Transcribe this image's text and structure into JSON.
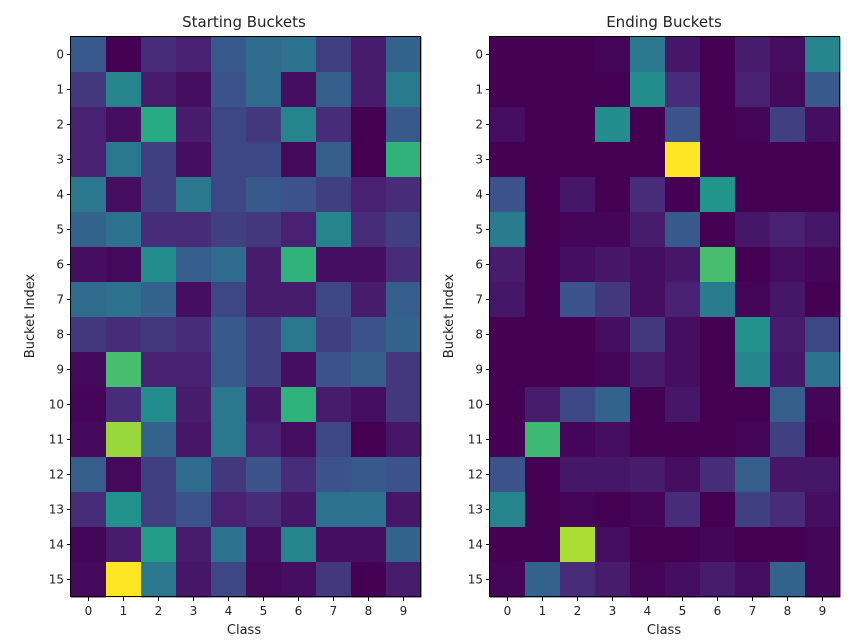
{
  "chart_data": [
    {
      "type": "heatmap",
      "title": "Starting Buckets",
      "xlabel": "Class",
      "ylabel": "Bucket Index",
      "x_ticks": [
        "0",
        "1",
        "2",
        "3",
        "4",
        "5",
        "6",
        "7",
        "8",
        "9"
      ],
      "y_ticks": [
        "0",
        "1",
        "2",
        "3",
        "4",
        "5",
        "6",
        "7",
        "8",
        "9",
        "10",
        "11",
        "12",
        "13",
        "14",
        "15"
      ],
      "colormap": "viridis",
      "value_range": [
        0,
        1
      ],
      "values": [
        [
          0.28,
          0.0,
          0.15,
          0.12,
          0.28,
          0.35,
          0.38,
          0.2,
          0.1,
          0.32
        ],
        [
          0.18,
          0.45,
          0.1,
          0.05,
          0.25,
          0.35,
          0.05,
          0.3,
          0.1,
          0.42
        ],
        [
          0.12,
          0.05,
          0.62,
          0.1,
          0.22,
          0.18,
          0.45,
          0.15,
          0.0,
          0.28
        ],
        [
          0.12,
          0.4,
          0.2,
          0.05,
          0.22,
          0.22,
          0.03,
          0.3,
          0.0,
          0.65
        ],
        [
          0.4,
          0.05,
          0.2,
          0.4,
          0.22,
          0.28,
          0.25,
          0.2,
          0.12,
          0.15
        ],
        [
          0.32,
          0.38,
          0.15,
          0.15,
          0.2,
          0.18,
          0.12,
          0.45,
          0.15,
          0.2
        ],
        [
          0.05,
          0.03,
          0.48,
          0.3,
          0.35,
          0.1,
          0.65,
          0.05,
          0.05,
          0.15
        ],
        [
          0.35,
          0.38,
          0.32,
          0.05,
          0.22,
          0.1,
          0.1,
          0.22,
          0.1,
          0.3
        ],
        [
          0.18,
          0.15,
          0.18,
          0.15,
          0.28,
          0.2,
          0.4,
          0.2,
          0.25,
          0.32
        ],
        [
          0.03,
          0.7,
          0.12,
          0.12,
          0.28,
          0.2,
          0.05,
          0.25,
          0.3,
          0.18
        ],
        [
          0.02,
          0.15,
          0.48,
          0.1,
          0.4,
          0.08,
          0.65,
          0.1,
          0.05,
          0.18
        ],
        [
          0.03,
          0.85,
          0.32,
          0.08,
          0.4,
          0.12,
          0.05,
          0.22,
          0.0,
          0.08
        ],
        [
          0.3,
          0.03,
          0.2,
          0.35,
          0.18,
          0.25,
          0.15,
          0.25,
          0.28,
          0.25
        ],
        [
          0.15,
          0.5,
          0.2,
          0.25,
          0.12,
          0.15,
          0.08,
          0.38,
          0.38,
          0.08
        ],
        [
          0.02,
          0.1,
          0.55,
          0.1,
          0.38,
          0.05,
          0.45,
          0.05,
          0.05,
          0.32
        ],
        [
          0.03,
          1.0,
          0.4,
          0.08,
          0.22,
          0.03,
          0.05,
          0.18,
          0.0,
          0.1
        ]
      ]
    },
    {
      "type": "heatmap",
      "title": "Ending Buckets",
      "xlabel": "Class",
      "ylabel": "Bucket Index",
      "x_ticks": [
        "0",
        "1",
        "2",
        "3",
        "4",
        "5",
        "6",
        "7",
        "8",
        "9"
      ],
      "y_ticks": [
        "0",
        "1",
        "2",
        "3",
        "4",
        "5",
        "6",
        "7",
        "8",
        "9",
        "10",
        "11",
        "12",
        "13",
        "14",
        "15"
      ],
      "colormap": "viridis",
      "value_range": [
        0,
        1
      ],
      "values": [
        [
          0.0,
          0.0,
          0.0,
          0.02,
          0.4,
          0.08,
          0.0,
          0.1,
          0.05,
          0.45
        ],
        [
          0.0,
          0.0,
          0.0,
          0.0,
          0.48,
          0.15,
          0.0,
          0.12,
          0.03,
          0.28
        ],
        [
          0.05,
          0.0,
          0.0,
          0.48,
          0.0,
          0.25,
          0.0,
          0.02,
          0.2,
          0.05
        ],
        [
          0.0,
          0.0,
          0.0,
          0.0,
          0.0,
          1.0,
          0.0,
          0.0,
          0.0,
          0.0
        ],
        [
          0.25,
          0.0,
          0.08,
          0.0,
          0.15,
          0.0,
          0.52,
          0.0,
          0.0,
          0.0
        ],
        [
          0.42,
          0.0,
          0.02,
          0.02,
          0.1,
          0.28,
          0.0,
          0.08,
          0.12,
          0.08
        ],
        [
          0.1,
          0.0,
          0.05,
          0.08,
          0.05,
          0.08,
          0.7,
          0.0,
          0.05,
          0.02
        ],
        [
          0.08,
          0.0,
          0.25,
          0.18,
          0.05,
          0.12,
          0.42,
          0.02,
          0.08,
          0.0
        ],
        [
          0.0,
          0.0,
          0.0,
          0.05,
          0.18,
          0.05,
          0.0,
          0.5,
          0.1,
          0.22
        ],
        [
          0.0,
          0.0,
          0.0,
          0.02,
          0.1,
          0.05,
          0.0,
          0.45,
          0.08,
          0.38
        ],
        [
          0.0,
          0.1,
          0.22,
          0.32,
          0.0,
          0.08,
          0.0,
          0.0,
          0.3,
          0.02
        ],
        [
          0.0,
          0.68,
          0.02,
          0.05,
          0.0,
          0.0,
          0.0,
          0.02,
          0.2,
          0.0
        ],
        [
          0.25,
          0.0,
          0.08,
          0.08,
          0.1,
          0.05,
          0.15,
          0.3,
          0.08,
          0.08
        ],
        [
          0.45,
          0.0,
          0.02,
          0.0,
          0.02,
          0.15,
          0.0,
          0.2,
          0.15,
          0.05
        ],
        [
          0.0,
          0.0,
          0.88,
          0.05,
          0.0,
          0.0,
          0.02,
          0.0,
          0.0,
          0.02
        ],
        [
          0.02,
          0.32,
          0.15,
          0.1,
          0.02,
          0.05,
          0.1,
          0.05,
          0.32,
          0.02
        ]
      ]
    }
  ]
}
